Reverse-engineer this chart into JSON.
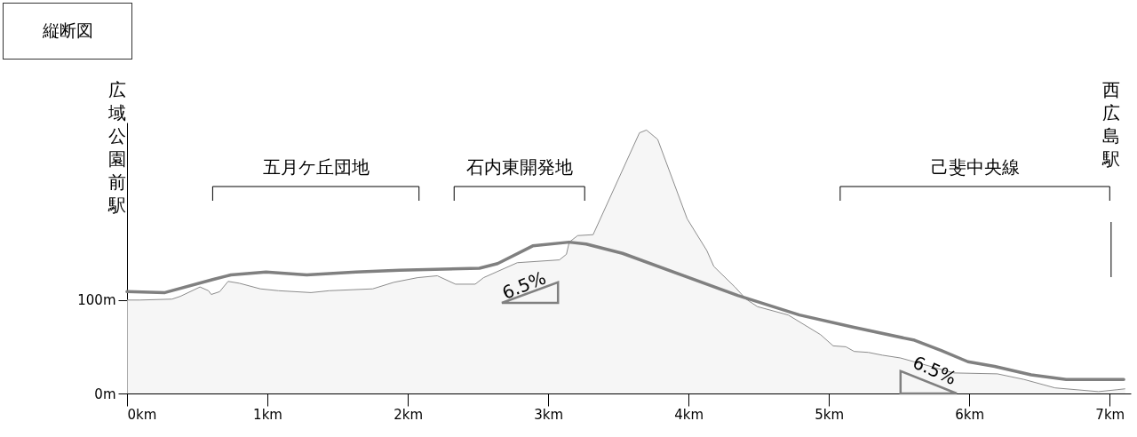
{
  "chart_data": {
    "type": "area",
    "title": "縦断図",
    "xlim": [
      0,
      7.15
    ],
    "ylim": [
      0,
      290
    ],
    "xticks": [
      {
        "value": 0,
        "label": "0km"
      },
      {
        "value": 1,
        "label": "1km"
      },
      {
        "value": 2,
        "label": "2km"
      },
      {
        "value": 3,
        "label": "3km"
      },
      {
        "value": 4,
        "label": "4km"
      },
      {
        "value": 5,
        "label": "5km"
      },
      {
        "value": 6,
        "label": "6km"
      },
      {
        "value": 7,
        "label": "7km"
      }
    ],
    "yticks": [
      {
        "value": 0,
        "label": "0m"
      },
      {
        "value": 100,
        "label": "100m"
      }
    ],
    "series": [
      {
        "color": "#f2f2f2",
        "x": [
          0,
          0.09,
          0.32,
          0.38,
          0.52,
          0.58,
          0.6,
          0.66,
          0.72,
          0.8,
          0.95,
          1.08,
          1.31,
          1.44,
          1.75,
          1.9,
          2.07,
          2.21,
          2.34,
          2.48,
          2.54,
          2.78,
          3.08,
          3.13,
          3.15,
          3.21,
          3.32,
          3.65,
          3.7,
          3.78,
          3.99,
          4.13,
          4.18,
          4.33,
          4.41,
          4.49,
          4.71,
          4.94,
          5.03,
          5.12,
          5.18,
          5.28,
          5.38,
          5.51,
          5.89,
          6.2,
          6.39,
          6.61,
          6.92,
          7.05,
          7.11
        ],
        "values": [
          100,
          100,
          101,
          104,
          114,
          110,
          106,
          109,
          120,
          118,
          112,
          110,
          108,
          110,
          112,
          119,
          124,
          126,
          117,
          117,
          124,
          140,
          143,
          149,
          162,
          169,
          170,
          279,
          282,
          272,
          187,
          153,
          136,
          114,
          101,
          93,
          84,
          63,
          51,
          50,
          45,
          44,
          41,
          38,
          22,
          21,
          15,
          6,
          2,
          4,
          5
        ]
      },
      {
        "type": "line",
        "color": "#808080",
        "x": [
          0,
          0.27,
          0.61,
          0.74,
          0.99,
          1.28,
          1.63,
          1.94,
          2.51,
          2.64,
          2.89,
          3.15,
          3.27,
          3.53,
          4.35,
          4.79,
          5.17,
          5.61,
          5.8,
          5.99,
          6.18,
          6.44,
          6.69,
          7.1
        ],
        "values": [
          109,
          108,
          122,
          127,
          130,
          127,
          130,
          132,
          134,
          139,
          158,
          162,
          160,
          150,
          105,
          84,
          71,
          57,
          46,
          34,
          29,
          20,
          15,
          15
        ]
      }
    ],
    "ref_lines": [
      {
        "axis": "x",
        "value": 7.01,
        "label": "西広島駅"
      }
    ],
    "annotations": [
      "広域公園前駅",
      "五月ケ丘団地",
      "石内東開発地",
      "己斐中央線",
      "6.5%",
      "6.5%"
    ]
  }
}
